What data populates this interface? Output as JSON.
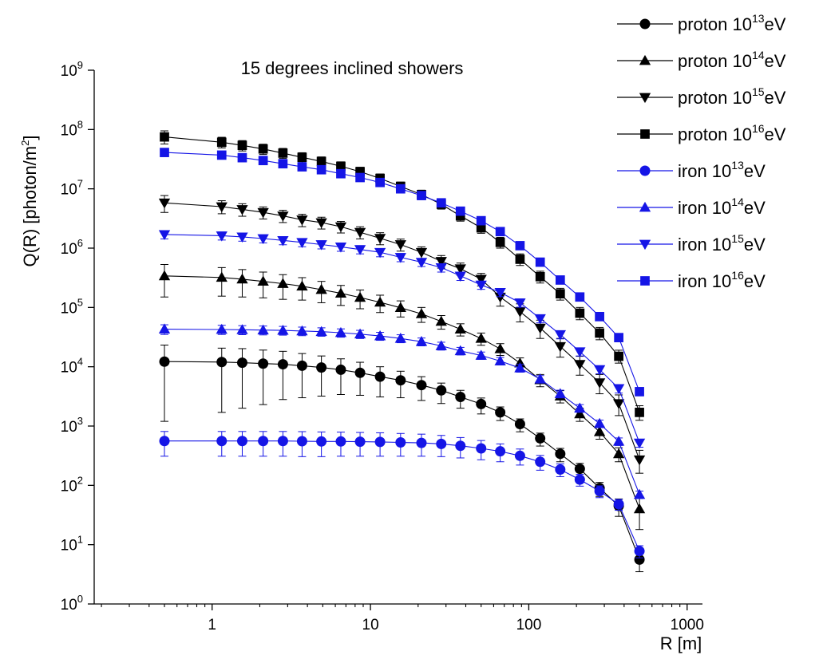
{
  "chart_data": {
    "type": "scatter",
    "title": "15 degrees inclined showers",
    "xlabel": "R [m]",
    "ylabel": "Q(R) [photon/m",
    "ylabel_sup": "2",
    "ylabel_close": "]",
    "x_scale": "log",
    "y_scale": "log",
    "xlim": [
      0.18,
      1250
    ],
    "ylim": [
      1,
      1000000000
    ],
    "grid": false,
    "legend_position": "top-right",
    "x_ticks": [
      {
        "value": 1,
        "label": "1"
      },
      {
        "value": 10,
        "label": "10"
      },
      {
        "value": 100,
        "label": "100"
      },
      {
        "value": 1000,
        "label": "1000"
      }
    ],
    "y_ticks": [
      {
        "value": 1,
        "base": "10",
        "exp": "0"
      },
      {
        "value": 10,
        "base": "10",
        "exp": "1"
      },
      {
        "value": 100,
        "base": "10",
        "exp": "2"
      },
      {
        "value": 1000,
        "base": "10",
        "exp": "3"
      },
      {
        "value": 10000,
        "base": "10",
        "exp": "4"
      },
      {
        "value": 100000,
        "base": "10",
        "exp": "5"
      },
      {
        "value": 1000000,
        "base": "10",
        "exp": "6"
      },
      {
        "value": 10000000,
        "base": "10",
        "exp": "7"
      },
      {
        "value": 100000000,
        "base": "10",
        "exp": "8"
      },
      {
        "value": 1000000000,
        "base": "10",
        "exp": "9"
      }
    ],
    "x": [
      0.5,
      1.15,
      1.55,
      2.1,
      2.8,
      3.7,
      4.9,
      6.5,
      8.6,
      11.5,
      15.5,
      21,
      28,
      37,
      50,
      66,
      88,
      118,
      158,
      210,
      280,
      370,
      500
    ],
    "series": [
      {
        "name": "proton 10",
        "name_sup": "13",
        "name_suffix": "eV",
        "color": "#000000",
        "marker": "circle",
        "values": [
          12200,
          12000,
          11700,
          11300,
          11000,
          10400,
          9700,
          8900,
          7900,
          6800,
          5900,
          4900,
          4000,
          3100,
          2350,
          1700,
          1080,
          620,
          340,
          190,
          90,
          45,
          5.6
        ],
        "err_low": [
          11000,
          10300,
          9700,
          9000,
          8200,
          7400,
          6500,
          5500,
          4600,
          3700,
          2900,
          2200,
          1600,
          1100,
          750,
          460,
          280,
          160,
          90,
          50,
          25,
          15,
          2.1
        ],
        "err_high": [
          11000,
          8600,
          8500,
          7800,
          7200,
          6300,
          5500,
          4700,
          4000,
          3200,
          2500,
          1900,
          1300,
          900,
          620,
          400,
          240,
          140,
          80,
          45,
          22,
          14,
          2.5
        ]
      },
      {
        "name": "proton 10",
        "name_sup": "14",
        "name_suffix": "eV",
        "color": "#000000",
        "marker": "triangle-up",
        "values": [
          340000,
          320000,
          300000,
          275000,
          252000,
          228000,
          200000,
          173000,
          147000,
          122000,
          99000,
          78000,
          58000,
          43000,
          30000,
          20000,
          11500,
          6000,
          3200,
          1600,
          800,
          340,
          40
        ],
        "err_low": [
          190000,
          165000,
          150000,
          130000,
          115000,
          95000,
          80000,
          65000,
          52000,
          40000,
          30000,
          22000,
          15000,
          10000,
          7000,
          4500,
          2600,
          1400,
          750,
          400,
          200,
          90,
          22
        ],
        "err_high": [
          190000,
          150000,
          135000,
          120000,
          105000,
          90000,
          75000,
          62000,
          50000,
          39000,
          30000,
          22000,
          15000,
          10000,
          7000,
          4500,
          2600,
          1400,
          750,
          400,
          200,
          90,
          25
        ]
      },
      {
        "name": "proton 10",
        "name_sup": "15",
        "name_suffix": "eV",
        "color": "#000000",
        "marker": "triangle-down",
        "values": [
          5800000,
          5000000,
          4500000,
          4000000,
          3500000,
          3000000,
          2700000,
          2300000,
          1850000,
          1470000,
          1150000,
          850000,
          600000,
          450000,
          300000,
          150000,
          85000,
          45000,
          22000,
          11000,
          5400,
          2400,
          270
        ],
        "err_low": [
          1800000,
          1200000,
          1050000,
          900000,
          800000,
          700000,
          600000,
          500000,
          420000,
          330000,
          260000,
          190000,
          140000,
          100000,
          70000,
          45000,
          28000,
          15000,
          7500,
          3800,
          1900,
          900,
          110
        ],
        "err_high": [
          1900000,
          1300000,
          1100000,
          950000,
          850000,
          720000,
          620000,
          520000,
          440000,
          350000,
          270000,
          200000,
          150000,
          110000,
          75000,
          48000,
          30000,
          16000,
          8000,
          4000,
          2000,
          950,
          120
        ]
      },
      {
        "name": "proton 10",
        "name_sup": "16",
        "name_suffix": "eV",
        "color": "#000000",
        "marker": "square",
        "values": [
          75000000,
          61000000,
          54000000,
          47000000,
          40000000,
          34000000,
          29000000,
          24000000,
          19500000,
          15000000,
          11000000,
          8000000,
          5500000,
          3500000,
          2200000,
          1250000,
          650000,
          330000,
          170000,
          80000,
          37000,
          15000,
          1700
        ],
        "err_low": [
          18000000,
          12000000,
          10500000,
          9000000,
          7500000,
          6300000,
          5200000,
          4200000,
          3400000,
          2600000,
          1900000,
          1400000,
          950000,
          650000,
          420000,
          250000,
          140000,
          72000,
          37000,
          18000,
          8500,
          3500,
          450
        ],
        "err_high": [
          20000000,
          13000000,
          11000000,
          9500000,
          8000000,
          6600000,
          5500000,
          4500000,
          3600000,
          2800000,
          2000000,
          1500000,
          1000000,
          700000,
          450000,
          270000,
          150000,
          78000,
          40000,
          20000,
          9000,
          4000,
          500
        ]
      },
      {
        "name": "iron 10",
        "name_sup": "13",
        "name_suffix": "eV",
        "color": "#1515e6",
        "marker": "circle",
        "values": [
          560,
          560,
          560,
          560,
          560,
          555,
          550,
          550,
          545,
          540,
          530,
          520,
          500,
          465,
          420,
          375,
          315,
          250,
          185,
          125,
          80,
          48,
          7.8
        ],
        "err_low": [
          250,
          250,
          250,
          250,
          250,
          250,
          245,
          240,
          235,
          230,
          220,
          210,
          195,
          175,
          150,
          125,
          95,
          70,
          45,
          28,
          18,
          10,
          1.8
        ],
        "err_high": [
          250,
          250,
          250,
          250,
          250,
          250,
          245,
          240,
          235,
          230,
          220,
          210,
          195,
          175,
          150,
          125,
          95,
          70,
          45,
          28,
          18,
          10,
          1.8
        ]
      },
      {
        "name": "iron 10",
        "name_sup": "14",
        "name_suffix": "eV",
        "color": "#1515e6",
        "marker": "triangle-up",
        "values": [
          43000,
          42500,
          42000,
          41500,
          41000,
          40000,
          39000,
          37500,
          35500,
          33000,
          30000,
          26500,
          22500,
          18500,
          15500,
          12500,
          9500,
          6200,
          3500,
          2000,
          1100,
          550,
          70
        ],
        "err_low": [
          8000,
          7500,
          7300,
          7100,
          6900,
          6600,
          6300,
          6000,
          5600,
          5100,
          4600,
          4000,
          3400,
          2700,
          2200,
          1800,
          1400,
          900,
          520,
          300,
          160,
          80,
          10
        ],
        "err_high": [
          8000,
          7500,
          7300,
          7100,
          6900,
          6600,
          6300,
          6000,
          5600,
          5100,
          4600,
          4000,
          3400,
          2700,
          2200,
          1800,
          1400,
          900,
          520,
          300,
          160,
          80,
          10
        ]
      },
      {
        "name": "iron 10",
        "name_sup": "15",
        "name_suffix": "eV",
        "color": "#1515e6",
        "marker": "triangle-down",
        "values": [
          1700000,
          1620000,
          1550000,
          1450000,
          1350000,
          1250000,
          1150000,
          1050000,
          950000,
          850000,
          700000,
          580000,
          470000,
          340000,
          240000,
          180000,
          120000,
          65000,
          35000,
          18000,
          9000,
          4300,
          520
        ],
        "err_low": [
          270000,
          250000,
          240000,
          225000,
          210000,
          195000,
          180000,
          165000,
          150000,
          135000,
          110000,
          90000,
          75000,
          55000,
          38000,
          28000,
          19000,
          10000,
          5500,
          2800,
          1400,
          700,
          80
        ],
        "err_high": [
          270000,
          250000,
          240000,
          225000,
          210000,
          195000,
          180000,
          165000,
          150000,
          135000,
          110000,
          90000,
          75000,
          55000,
          38000,
          28000,
          19000,
          10000,
          5500,
          2800,
          1400,
          700,
          80
        ]
      },
      {
        "name": "iron 10",
        "name_sup": "16",
        "name_suffix": "eV",
        "color": "#1515e6",
        "marker": "square",
        "values": [
          41000000,
          37000000,
          33500000,
          30000000,
          26500000,
          23500000,
          21000000,
          18000000,
          15500000,
          12800000,
          10000000,
          7700000,
          5800000,
          4200000,
          2900000,
          1900000,
          1100000,
          580000,
          290000,
          150000,
          70000,
          31000,
          3800
        ],
        "err_low": [
          5500000,
          5000000,
          4500000,
          4000000,
          3600000,
          3200000,
          2800000,
          2400000,
          2100000,
          1700000,
          1350000,
          1050000,
          780000,
          560000,
          390000,
          250000,
          150000,
          78000,
          39000,
          20000,
          9500,
          4200,
          500
        ],
        "err_high": [
          5500000,
          5000000,
          4500000,
          4000000,
          3600000,
          3200000,
          2800000,
          2400000,
          2100000,
          1700000,
          1350000,
          1050000,
          780000,
          560000,
          390000,
          250000,
          150000,
          78000,
          39000,
          20000,
          9500,
          4200,
          500
        ]
      }
    ]
  }
}
